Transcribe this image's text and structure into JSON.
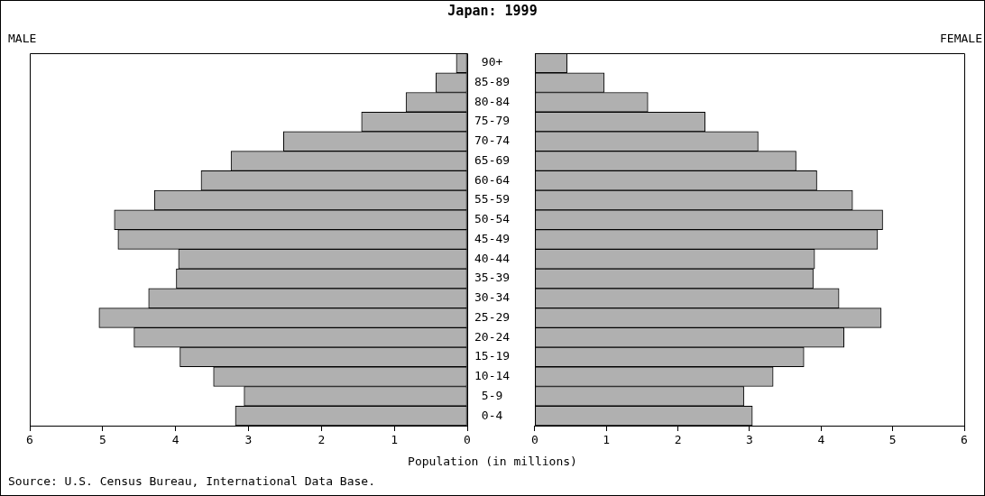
{
  "chart_data": [
    {
      "type": "bar",
      "orientation": "horizontal",
      "title": "Japan: 1999",
      "subtitle": "MALE",
      "xlabel": "Population (in millions)",
      "annotations": [
        "Source: U.S. Census Bureau, International Data Base."
      ],
      "categories": [
        "90+",
        "85-89",
        "80-84",
        "75-79",
        "70-74",
        "65-69",
        "60-64",
        "55-59",
        "50-54",
        "45-49",
        "40-44",
        "35-39",
        "30-34",
        "25-29",
        "20-24",
        "15-19",
        "10-14",
        "5-9",
        "0-4"
      ],
      "series": [
        {
          "color": "#b0b0b0",
          "values": [
            0.15,
            0.43,
            0.84,
            1.45,
            2.52,
            3.24,
            3.65,
            4.29,
            4.84,
            4.79,
            3.96,
            3.99,
            4.37,
            5.05,
            4.57,
            3.94,
            3.48,
            3.06,
            3.18
          ]
        }
      ],
      "xlim": [
        6,
        0
      ],
      "xticks": [
        6,
        5,
        4,
        3,
        2,
        1,
        0
      ]
    },
    {
      "type": "bar",
      "orientation": "horizontal",
      "subtitle": "FEMALE",
      "series": [
        {
          "color": "#b0b0b0",
          "values": [
            0.45,
            0.97,
            1.58,
            2.38,
            3.12,
            3.65,
            3.94,
            4.44,
            4.86,
            4.79,
            3.91,
            3.89,
            4.25,
            4.84,
            4.32,
            3.76,
            3.33,
            2.92,
            3.04
          ]
        }
      ],
      "xlim": [
        0,
        6
      ],
      "xticks": [
        0,
        1,
        2,
        3,
        4,
        5,
        6
      ],
      "tick_labels": "x"
    }
  ]
}
